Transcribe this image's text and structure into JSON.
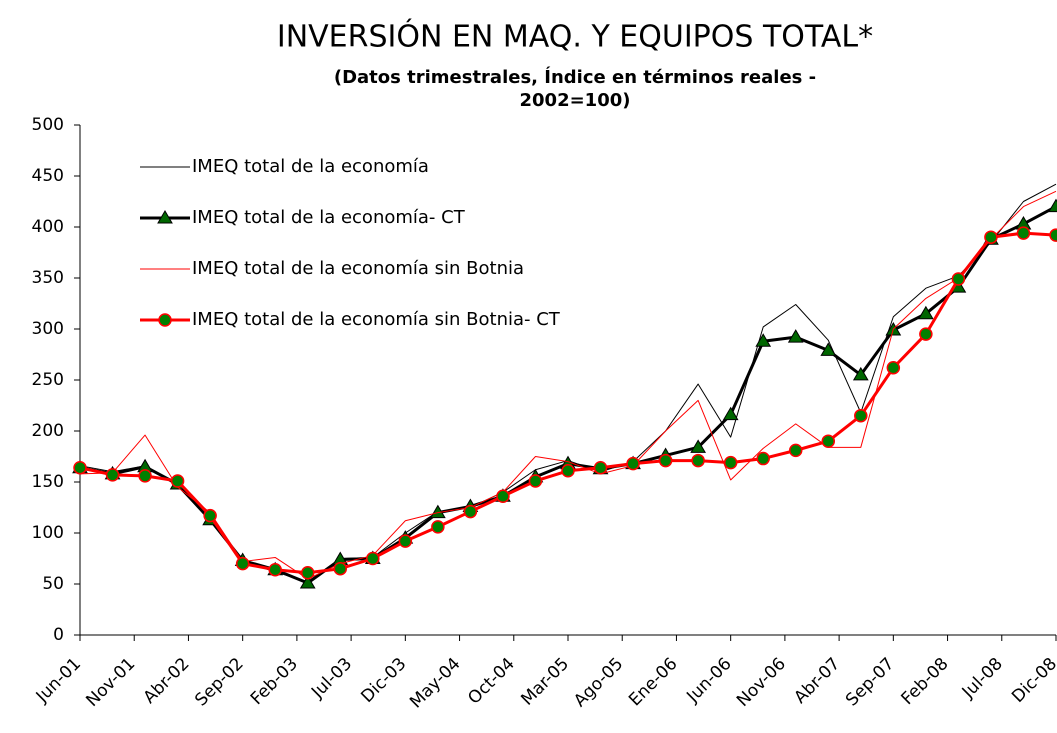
{
  "chart_data": {
    "type": "line",
    "title": "INVERSIÓN EN MAQ. Y EQUIPOS TOTAL*",
    "subtitle": [
      "(Datos trimestrales, Índice en términos reales -",
      "2002=100)"
    ],
    "x": [
      0,
      3,
      6,
      9,
      12,
      15,
      18,
      21,
      24,
      27,
      30,
      33,
      36,
      39,
      42,
      45,
      48,
      51,
      54,
      57,
      60,
      63,
      66,
      69,
      72,
      75,
      78,
      81,
      84,
      87,
      90
    ],
    "xlim": [
      0,
      90
    ],
    "xticks": [
      {
        "value": 0,
        "label": "Jun-01"
      },
      {
        "value": 5,
        "label": "Nov-01"
      },
      {
        "value": 10,
        "label": "Abr-02"
      },
      {
        "value": 15,
        "label": "Sep-02"
      },
      {
        "value": 20,
        "label": "Feb-03"
      },
      {
        "value": 25,
        "label": "Jul-03"
      },
      {
        "value": 30,
        "label": "Dic-03"
      },
      {
        "value": 35,
        "label": "May-04"
      },
      {
        "value": 40,
        "label": "Oct-04"
      },
      {
        "value": 45,
        "label": "Mar-05"
      },
      {
        "value": 50,
        "label": "Ago-05"
      },
      {
        "value": 55,
        "label": "Ene-06"
      },
      {
        "value": 60,
        "label": "Jun-06"
      },
      {
        "value": 65,
        "label": "Nov-06"
      },
      {
        "value": 70,
        "label": "Abr-07"
      },
      {
        "value": 75,
        "label": "Sep-07"
      },
      {
        "value": 80,
        "label": "Feb-08"
      },
      {
        "value": 85,
        "label": "Jul-08"
      },
      {
        "value": 90,
        "label": "Dic-08"
      }
    ],
    "ylim": [
      0,
      500
    ],
    "yticks": [
      0,
      50,
      100,
      150,
      200,
      250,
      300,
      350,
      400,
      450,
      500
    ],
    "legend": "upper left",
    "series": [
      {
        "name": "IMEQ total de la economía",
        "color": "#000000",
        "width": 1,
        "marker": "none",
        "values": [
          166,
          160,
          166,
          146,
          112,
          72,
          62,
          52,
          75,
          76,
          100,
          121,
          125,
          140,
          162,
          171,
          160,
          170,
          200,
          246,
          194,
          302,
          324,
          289,
          218,
          312,
          340,
          352,
          385,
          425,
          442
        ]
      },
      {
        "name": "IMEQ total de la economía- CT",
        "color": "#000000",
        "width": 3,
        "marker": "triangle",
        "marker_color": "#006600",
        "values": [
          164,
          158,
          165,
          148,
          113,
          73,
          64,
          51,
          74,
          75,
          95,
          120,
          126,
          136,
          155,
          168,
          163,
          168,
          176,
          184,
          216,
          288,
          292,
          279,
          255,
          299,
          315,
          341,
          388,
          403,
          420
        ]
      },
      {
        "name": "IMEQ total de la economía sin Botnia",
        "color": "#ff0000",
        "width": 1,
        "marker": "none",
        "values": [
          158,
          159,
          196,
          145,
          120,
          72,
          76,
          55,
          70,
          78,
          112,
          120,
          125,
          140,
          175,
          170,
          158,
          166,
          200,
          230,
          152,
          183,
          207,
          184,
          184,
          300,
          330,
          350,
          388,
          420,
          435
        ]
      },
      {
        "name": "IMEQ total de la economía sin Botnia- CT",
        "color": "#ff0000",
        "width": 3,
        "marker": "circle",
        "marker_color": "#008000",
        "values": [
          164,
          157,
          156,
          151,
          117,
          70,
          64,
          61,
          65,
          75,
          92,
          106,
          121,
          136,
          151,
          161,
          164,
          168,
          171,
          171,
          169,
          173,
          181,
          190,
          215,
          262,
          295,
          349,
          390,
          394,
          392
        ]
      }
    ]
  }
}
